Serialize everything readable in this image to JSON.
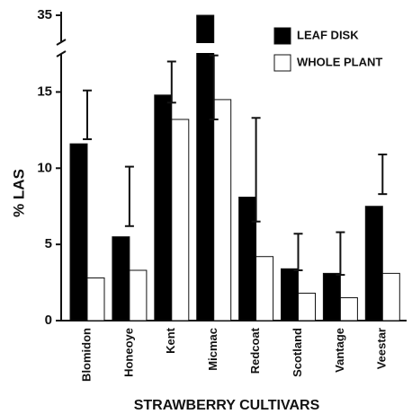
{
  "chart_data": {
    "type": "bar",
    "x_label": "STRAWBERRY CULTIVARS",
    "y_label": "% LAS",
    "categories": [
      "Blomidon",
      "Honeoye",
      "Kent",
      "Micmac",
      "Redcoat",
      "Scotland",
      "Vantage",
      "Veestar"
    ],
    "series": [
      {
        "name": "LEAF DISK",
        "color": "#000000",
        "values": [
          11.6,
          5.5,
          14.8,
          35,
          8.1,
          3.4,
          3.1,
          7.5
        ]
      },
      {
        "name": "WHOLE PLANT",
        "color": "#ffffff",
        "values": [
          2.8,
          3.3,
          13.2,
          14.5,
          4.2,
          1.8,
          1.5,
          3.1
        ]
      }
    ],
    "interval_low": [
      11.9,
      6.2,
      14.3,
      13.2,
      6.5,
      3.3,
      3.0,
      8.3
    ],
    "interval_high": [
      15.1,
      10.1,
      17.0,
      17.4,
      13.3,
      5.7,
      5.8,
      10.9
    ],
    "ylim": [
      0,
      35
    ],
    "ybreak": [
      17.5,
      34
    ],
    "yticks": [
      0,
      5,
      10,
      15,
      35
    ],
    "legend": "upper right"
  }
}
